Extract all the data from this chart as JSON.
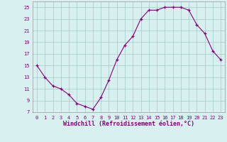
{
  "x": [
    0,
    1,
    2,
    3,
    4,
    5,
    6,
    7,
    8,
    9,
    10,
    11,
    12,
    13,
    14,
    15,
    16,
    17,
    18,
    19,
    20,
    21,
    22,
    23
  ],
  "y": [
    15,
    13,
    11.5,
    11,
    10,
    8.5,
    8,
    7.5,
    9.5,
    12.5,
    16,
    18.5,
    20,
    23,
    24.5,
    24.5,
    25,
    25,
    25,
    24.5,
    22,
    20.5,
    17.5,
    16
  ],
  "line_color": "#800080",
  "marker": "+",
  "bg_color": "#d9f0f0",
  "grid_color": "#aacfcf",
  "xlabel": "Windchill (Refroidissement éolien,°C)",
  "xlabel_color": "#800080",
  "tick_color": "#800080",
  "ylim": [
    7,
    26
  ],
  "yticks": [
    7,
    9,
    11,
    13,
    15,
    17,
    19,
    21,
    23,
    25
  ],
  "xlim": [
    -0.5,
    23.5
  ],
  "xticks": [
    0,
    1,
    2,
    3,
    4,
    5,
    6,
    7,
    8,
    9,
    10,
    11,
    12,
    13,
    14,
    15,
    16,
    17,
    18,
    19,
    20,
    21,
    22,
    23
  ],
  "xtick_labels": [
    "0",
    "1",
    "2",
    "3",
    "4",
    "5",
    "6",
    "7",
    "8",
    "9",
    "10",
    "11",
    "12",
    "13",
    "14",
    "15",
    "16",
    "17",
    "18",
    "19",
    "20",
    "21",
    "22",
    "23"
  ]
}
